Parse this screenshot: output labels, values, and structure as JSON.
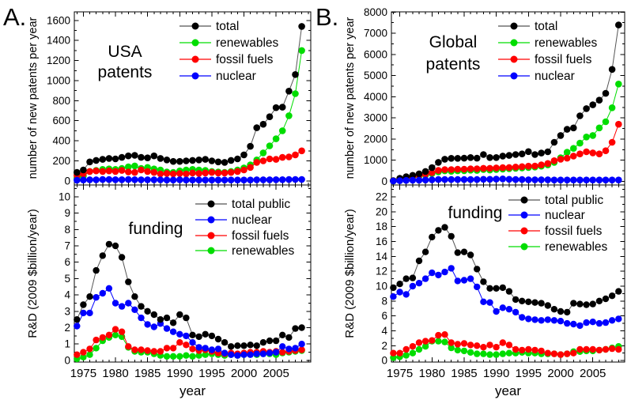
{
  "figure": {
    "panel_a_letter": "A.",
    "panel_b_letter": "B.",
    "background": "#ffffff",
    "text_color": "#000000"
  },
  "years": [
    1974,
    1975,
    1976,
    1977,
    1978,
    1979,
    1980,
    1981,
    1982,
    1983,
    1984,
    1985,
    1986,
    1987,
    1988,
    1989,
    1990,
    1991,
    1992,
    1993,
    1994,
    1995,
    1996,
    1997,
    1998,
    1999,
    2000,
    2001,
    2002,
    2003,
    2004,
    2005,
    2006,
    2007,
    2008,
    2009
  ],
  "chart_data": [
    {
      "id": "usa-patents",
      "type": "line",
      "title": "USA patents",
      "annotation_lines": [
        "USA",
        "patents"
      ],
      "ylabel": "number of new patents per year",
      "xlabel": "",
      "ylim": [
        0,
        1600
      ],
      "yticks": [
        0,
        200,
        400,
        600,
        800,
        1000,
        1200,
        1400,
        1600
      ],
      "xticks": [
        1975,
        1980,
        1985,
        1990,
        1995,
        2000,
        2005
      ],
      "legend_position": "top-right-inside",
      "grid": false,
      "series": [
        {
          "name": "total",
          "color": "#000000",
          "line": "#555555",
          "values": [
            85,
            110,
            190,
            205,
            215,
            225,
            220,
            235,
            250,
            255,
            235,
            230,
            250,
            225,
            210,
            195,
            195,
            200,
            205,
            210,
            215,
            200,
            190,
            185,
            205,
            220,
            260,
            345,
            530,
            565,
            640,
            730,
            735,
            895,
            1060,
            1540
          ]
        },
        {
          "name": "renewables",
          "color": "#00dd00",
          "values": [
            30,
            50,
            95,
            105,
            115,
            120,
            115,
            125,
            140,
            150,
            125,
            135,
            120,
            110,
            90,
            85,
            100,
            110,
            115,
            110,
            105,
            95,
            90,
            85,
            95,
            110,
            130,
            160,
            210,
            280,
            350,
            420,
            500,
            650,
            870,
            1300
          ]
        },
        {
          "name": "fossil fuels",
          "color": "#ff0000",
          "values": [
            55,
            70,
            95,
            100,
            95,
            100,
            95,
            105,
            90,
            85,
            110,
            95,
            85,
            70,
            75,
            70,
            75,
            70,
            80,
            75,
            80,
            85,
            80,
            80,
            85,
            95,
            110,
            135,
            185,
            200,
            220,
            215,
            235,
            240,
            260,
            300
          ]
        },
        {
          "name": "nuclear",
          "color": "#0000ff",
          "values": [
            8,
            10,
            12,
            12,
            14,
            14,
            13,
            13,
            14,
            13,
            12,
            12,
            12,
            11,
            10,
            10,
            12,
            10,
            10,
            10,
            10,
            10,
            10,
            10,
            10,
            10,
            10,
            10,
            12,
            12,
            12,
            13,
            13,
            14,
            15,
            15
          ]
        }
      ]
    },
    {
      "id": "usa-funding",
      "type": "line",
      "title": "USA funding",
      "annotation_lines": [
        "funding"
      ],
      "ylabel": "R&D (2009 $billion/year)",
      "xlabel": "year",
      "ylim": [
        0,
        10
      ],
      "yticks": [
        0,
        1,
        2,
        3,
        4,
        5,
        6,
        7,
        8,
        9,
        10
      ],
      "xticks": [
        1975,
        1980,
        1985,
        1990,
        1995,
        2000,
        2005
      ],
      "legend_position": "top-right-inside",
      "grid": false,
      "series": [
        {
          "name": "total public",
          "color": "#000000",
          "line": "#555555",
          "values": [
            2.5,
            3.4,
            3.9,
            5.5,
            6.4,
            7.1,
            7.0,
            6.3,
            4.8,
            3.9,
            3.3,
            3.0,
            2.8,
            2.5,
            2.6,
            2.3,
            2.8,
            2.6,
            1.55,
            1.45,
            1.6,
            1.5,
            1.3,
            1.1,
            0.85,
            0.9,
            0.9,
            0.95,
            0.9,
            1.1,
            1.2,
            1.2,
            1.55,
            1.4,
            1.95,
            2.0
          ]
        },
        {
          "name": "nuclear",
          "color": "#0000ff",
          "values": [
            2.1,
            2.9,
            2.9,
            3.85,
            4.1,
            4.4,
            3.5,
            3.3,
            3.5,
            3.1,
            2.6,
            2.2,
            2.05,
            2.25,
            1.95,
            1.75,
            1.6,
            1.5,
            1.1,
            0.8,
            0.75,
            0.65,
            0.7,
            0.45,
            0.35,
            0.3,
            0.35,
            0.35,
            0.4,
            0.4,
            0.45,
            0.5,
            0.85,
            0.7,
            0.75,
            1.0
          ]
        },
        {
          "name": "fossil fuels",
          "color": "#ff0000",
          "values": [
            0.35,
            0.5,
            0.7,
            1.25,
            1.4,
            1.55,
            1.9,
            1.75,
            0.85,
            0.65,
            0.65,
            0.6,
            0.55,
            0.55,
            0.75,
            0.75,
            1.1,
            0.95,
            0.7,
            0.6,
            0.65,
            0.55,
            0.45,
            0.4,
            0.45,
            0.4,
            0.45,
            0.5,
            0.5,
            0.55,
            0.5,
            0.55,
            0.5,
            0.55,
            0.6,
            0.65
          ]
        },
        {
          "name": "renewables",
          "color": "#00dd00",
          "values": [
            0.1,
            0.2,
            0.35,
            0.75,
            1.2,
            1.4,
            1.55,
            1.45,
            0.8,
            0.55,
            0.5,
            0.5,
            0.4,
            0.3,
            0.25,
            0.25,
            0.25,
            0.3,
            0.25,
            0.3,
            0.35,
            0.4,
            0.35,
            0.3,
            0.35,
            0.3,
            0.35,
            0.4,
            0.35,
            0.4,
            0.4,
            0.35,
            0.45,
            0.5,
            0.55,
            0.6
          ]
        }
      ]
    },
    {
      "id": "global-patents",
      "type": "line",
      "title": "Global patents",
      "annotation_lines": [
        "Global",
        "patents"
      ],
      "ylabel": "number of new patents per year",
      "xlabel": "",
      "ylim": [
        0,
        8000
      ],
      "yticks": [
        0,
        1000,
        2000,
        3000,
        4000,
        5000,
        6000,
        7000,
        8000
      ],
      "xticks": [
        1975,
        1980,
        1985,
        1990,
        1995,
        2000,
        2005
      ],
      "legend_position": "top-right-inside",
      "grid": false,
      "series": [
        {
          "name": "total",
          "color": "#000000",
          "line": "#555555",
          "values": [
            40,
            150,
            220,
            290,
            360,
            470,
            650,
            900,
            1050,
            1090,
            1090,
            1100,
            1130,
            1100,
            1270,
            1130,
            1130,
            1200,
            1230,
            1270,
            1300,
            1410,
            1270,
            1340,
            1400,
            1850,
            2170,
            2460,
            2530,
            3100,
            3440,
            3620,
            3840,
            4160,
            5290,
            7390
          ]
        },
        {
          "name": "renewables",
          "color": "#00dd00",
          "values": [
            25,
            80,
            140,
            200,
            250,
            300,
            370,
            450,
            500,
            480,
            500,
            510,
            530,
            520,
            560,
            540,
            560,
            580,
            600,
            620,
            640,
            660,
            680,
            720,
            780,
            900,
            1120,
            1380,
            1560,
            1810,
            2100,
            2170,
            2530,
            2820,
            3480,
            4600
          ]
        },
        {
          "name": "fossil fuels",
          "color": "#ff0000",
          "values": [
            30,
            100,
            170,
            230,
            290,
            350,
            420,
            520,
            560,
            560,
            580,
            580,
            600,
            600,
            620,
            620,
            640,
            650,
            660,
            680,
            700,
            720,
            730,
            780,
            850,
            980,
            1050,
            1100,
            1200,
            1300,
            1400,
            1350,
            1300,
            1450,
            1850,
            2700
          ]
        },
        {
          "name": "nuclear",
          "color": "#0000ff",
          "values": [
            20,
            35,
            50,
            60,
            60,
            70,
            80,
            90,
            90,
            90,
            90,
            90,
            90,
            90,
            100,
            100,
            110,
            120,
            100,
            90,
            90,
            80,
            80,
            80,
            80,
            70,
            70,
            70,
            70,
            70,
            70,
            70,
            70,
            70,
            70,
            70
          ]
        }
      ]
    },
    {
      "id": "global-funding",
      "type": "line",
      "title": "Global funding",
      "annotation_lines": [
        "funding"
      ],
      "ylabel": "R&D (2009 $billion/year)",
      "xlabel": "year",
      "ylim": [
        0,
        22
      ],
      "yticks": [
        0,
        2,
        4,
        6,
        8,
        10,
        12,
        14,
        16,
        18,
        20,
        22
      ],
      "xticks": [
        1975,
        1980,
        1985,
        1990,
        1995,
        2000,
        2005
      ],
      "legend_position": "top-right-inside",
      "grid": false,
      "series": [
        {
          "name": "total public",
          "color": "#000000",
          "line": "#555555",
          "values": [
            9.8,
            10.3,
            11.0,
            11.1,
            13.4,
            14.6,
            16.6,
            17.5,
            17.9,
            16.7,
            14.5,
            14.6,
            14.2,
            12.3,
            10.6,
            9.7,
            9.7,
            9.8,
            9.3,
            8.2,
            8.0,
            7.9,
            7.8,
            7.7,
            7.4,
            6.9,
            6.6,
            6.5,
            7.7,
            7.6,
            7.5,
            7.6,
            8.0,
            8.3,
            8.7,
            9.3
          ]
        },
        {
          "name": "nuclear",
          "color": "#0000ff",
          "values": [
            8.6,
            9.2,
            8.9,
            10.0,
            10.4,
            11.0,
            11.8,
            11.5,
            11.9,
            12.4,
            10.7,
            10.8,
            11.0,
            9.9,
            7.9,
            7.8,
            6.6,
            7.1,
            6.9,
            6.5,
            5.8,
            5.6,
            5.5,
            5.4,
            5.5,
            5.4,
            5.3,
            5.0,
            4.9,
            4.7,
            5.1,
            5.2,
            5.0,
            5.1,
            5.4,
            5.6
          ]
        },
        {
          "name": "fossil fuels",
          "color": "#ff0000",
          "values": [
            1.0,
            1.0,
            1.5,
            1.9,
            2.4,
            2.6,
            2.7,
            3.4,
            3.5,
            2.4,
            2.2,
            2.3,
            2.1,
            2.0,
            1.8,
            2.1,
            1.8,
            2.4,
            2.1,
            1.5,
            1.4,
            1.5,
            1.4,
            1.3,
            1.0,
            0.9,
            0.8,
            0.9,
            1.0,
            1.5,
            1.5,
            1.5,
            1.4,
            1.5,
            1.6,
            1.5
          ]
        },
        {
          "name": "renewables",
          "color": "#00dd00",
          "values": [
            0.4,
            0.5,
            0.7,
            1.0,
            1.5,
            1.9,
            2.6,
            2.6,
            2.5,
            1.7,
            1.4,
            1.3,
            1.1,
            0.9,
            0.9,
            0.8,
            0.8,
            0.9,
            1.0,
            1.0,
            1.1,
            1.0,
            1.0,
            0.9,
            0.9,
            0.9,
            0.8,
            0.9,
            1.2,
            1.2,
            1.3,
            1.3,
            1.4,
            1.5,
            1.7,
            1.9
          ]
        }
      ]
    }
  ]
}
